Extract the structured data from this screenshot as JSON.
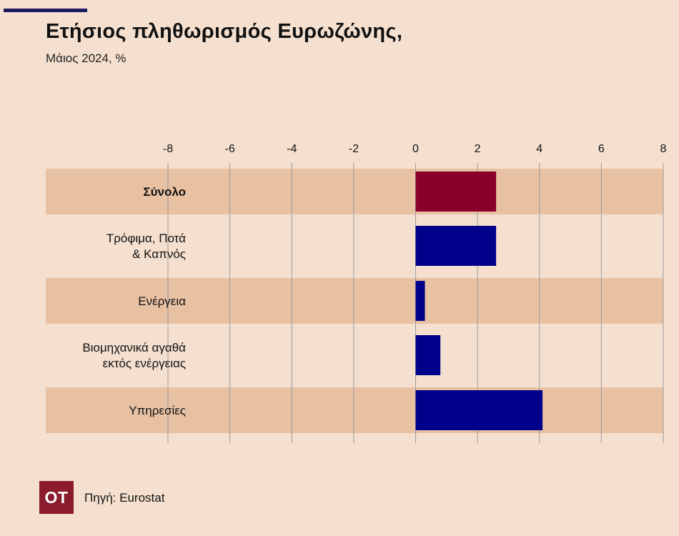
{
  "header": {
    "title": "Ετήσιος πληθωρισμός Ευρωζώνης,",
    "subtitle": "Μάιος  2024, %"
  },
  "colors": {
    "accent_line": "#1a1a5e",
    "background": "#f5e0cf",
    "band": "#e8c1a3",
    "highlight_bar": "#8a002b",
    "bar": "#00008b",
    "grid": "#9a9a9a",
    "logo_bg": "#8a1c2e"
  },
  "chart_data": {
    "type": "bar",
    "orientation": "horizontal",
    "categories": [
      [
        "Σύνολο"
      ],
      [
        "Τρόφιμα, Ποτά",
        "& Καπνός"
      ],
      [
        "Ενέργεια"
      ],
      [
        "Βιομηχανικά αγαθά",
        "εκτός ενέργειας"
      ],
      [
        "Υπηρεσίες"
      ]
    ],
    "values": [
      2.6,
      2.6,
      0.3,
      0.8,
      4.1
    ],
    "highlight_index": 0,
    "xlim": [
      -8,
      8
    ],
    "xticks": [
      -8,
      -6,
      -4,
      -2,
      0,
      2,
      4,
      6,
      8
    ],
    "tick_labels": [
      "-8",
      "-6",
      "-4",
      "-2",
      "0",
      "2",
      "4",
      "6",
      "8"
    ],
    "axis_position": "top",
    "grid": true,
    "legend": "none"
  },
  "footer": {
    "logo_text": "ΟΤ",
    "source": "Πηγή: Eurostat"
  }
}
